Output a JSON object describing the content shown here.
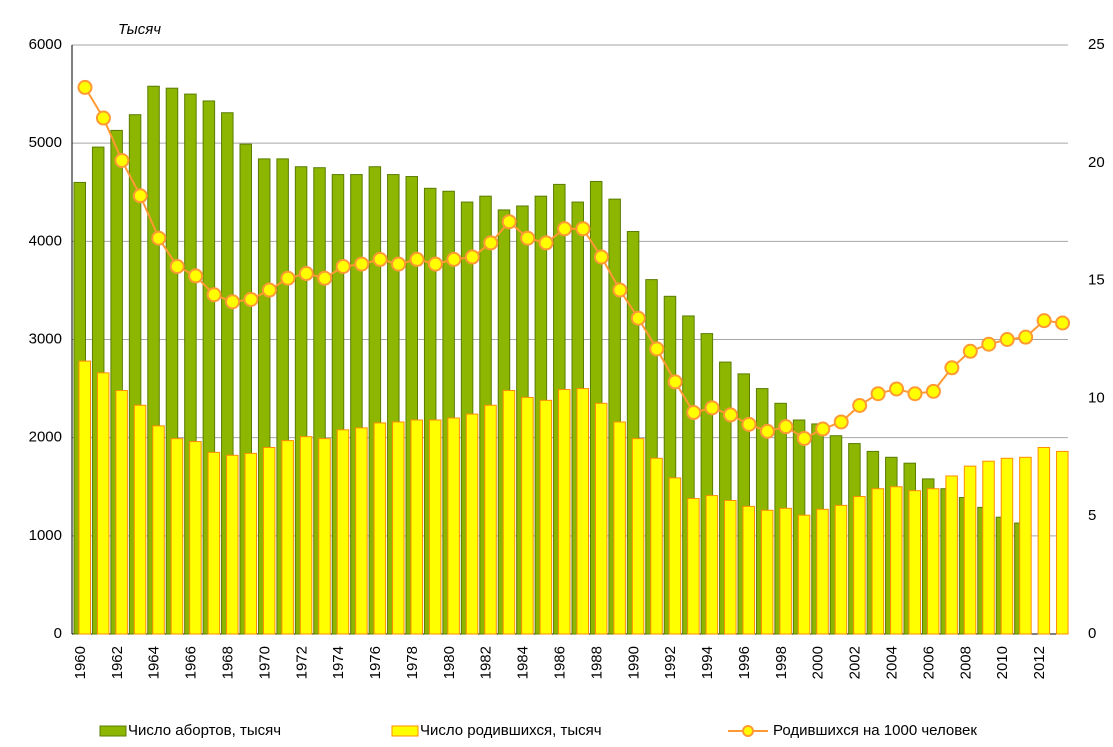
{
  "chart_data": {
    "type": "bar",
    "y_label": "Тысяч",
    "categories": [
      "1960",
      null,
      "1962",
      null,
      "1964",
      null,
      "1966",
      null,
      "1968",
      null,
      "1970",
      null,
      "1972",
      null,
      "1974",
      null,
      "1976",
      null,
      "1978",
      null,
      "1980",
      null,
      "1982",
      null,
      "1984",
      null,
      "1986",
      null,
      "1988",
      null,
      "1990",
      null,
      "1992",
      null,
      "1994",
      null,
      "1996",
      null,
      "1998",
      null,
      "2000",
      null,
      "2002",
      null,
      "2004",
      null,
      "2006",
      null,
      "2008",
      null,
      "2010",
      null,
      "2012",
      null
    ],
    "series": [
      {
        "name": "Число абортов, тысяч",
        "type": "bar",
        "color": "#8db600",
        "values": [
          4600,
          4960,
          5130,
          5290,
          5580,
          5560,
          5500,
          5430,
          5310,
          4990,
          4840,
          4840,
          4760,
          4750,
          4680,
          4680,
          4760,
          4680,
          4660,
          4540,
          4510,
          4400,
          4460,
          4320,
          4360,
          4460,
          4580,
          4400,
          4610,
          4430,
          4100,
          3610,
          3440,
          3240,
          3060,
          2770,
          2650,
          2500,
          2350,
          2180,
          2140,
          2020,
          1940,
          1860,
          1800,
          1740,
          1580,
          1480,
          1390,
          1290,
          1190,
          1130,
          null,
          null
        ]
      },
      {
        "name": "Число родившихся, тысяч",
        "type": "bar",
        "color": "#ffff00",
        "values": [
          2780,
          2660,
          2480,
          2330,
          2120,
          1990,
          1960,
          1850,
          1820,
          1840,
          1900,
          1970,
          2010,
          1990,
          2080,
          2100,
          2150,
          2160,
          2180,
          2180,
          2200,
          2240,
          2330,
          2480,
          2410,
          2380,
          2490,
          2500,
          2350,
          2160,
          1990,
          1790,
          1590,
          1380,
          1410,
          1360,
          1300,
          1260,
          1280,
          1210,
          1270,
          1310,
          1400,
          1480,
          1500,
          1460,
          1480,
          1610,
          1710,
          1760,
          1790,
          1800,
          1900,
          1860
        ]
      },
      {
        "name": "Родившихся на 1000 человек",
        "type": "line",
        "axis": "y2",
        "color": "#ff9933",
        "values": [
          23.2,
          21.9,
          20.1,
          18.6,
          16.8,
          15.6,
          15.2,
          14.4,
          14.1,
          14.2,
          14.6,
          15.1,
          15.3,
          15.1,
          15.6,
          15.7,
          15.9,
          15.7,
          15.9,
          15.7,
          15.9,
          16.0,
          16.6,
          17.5,
          16.8,
          16.6,
          17.2,
          17.2,
          16.0,
          14.6,
          13.4,
          12.1,
          10.7,
          9.4,
          9.6,
          9.3,
          8.9,
          8.6,
          8.8,
          8.3,
          8.7,
          9.0,
          9.7,
          10.2,
          10.4,
          10.2,
          10.3,
          11.3,
          12.0,
          12.3,
          12.5,
          12.6,
          13.3,
          13.2
        ]
      }
    ],
    "ylim": [
      0,
      6000
    ],
    "yticks": [
      0,
      1000,
      2000,
      3000,
      4000,
      5000,
      6000
    ],
    "y2lim": [
      0,
      25
    ],
    "y2ticks": [
      0,
      5,
      10,
      15,
      20,
      25
    ],
    "grid": true
  }
}
